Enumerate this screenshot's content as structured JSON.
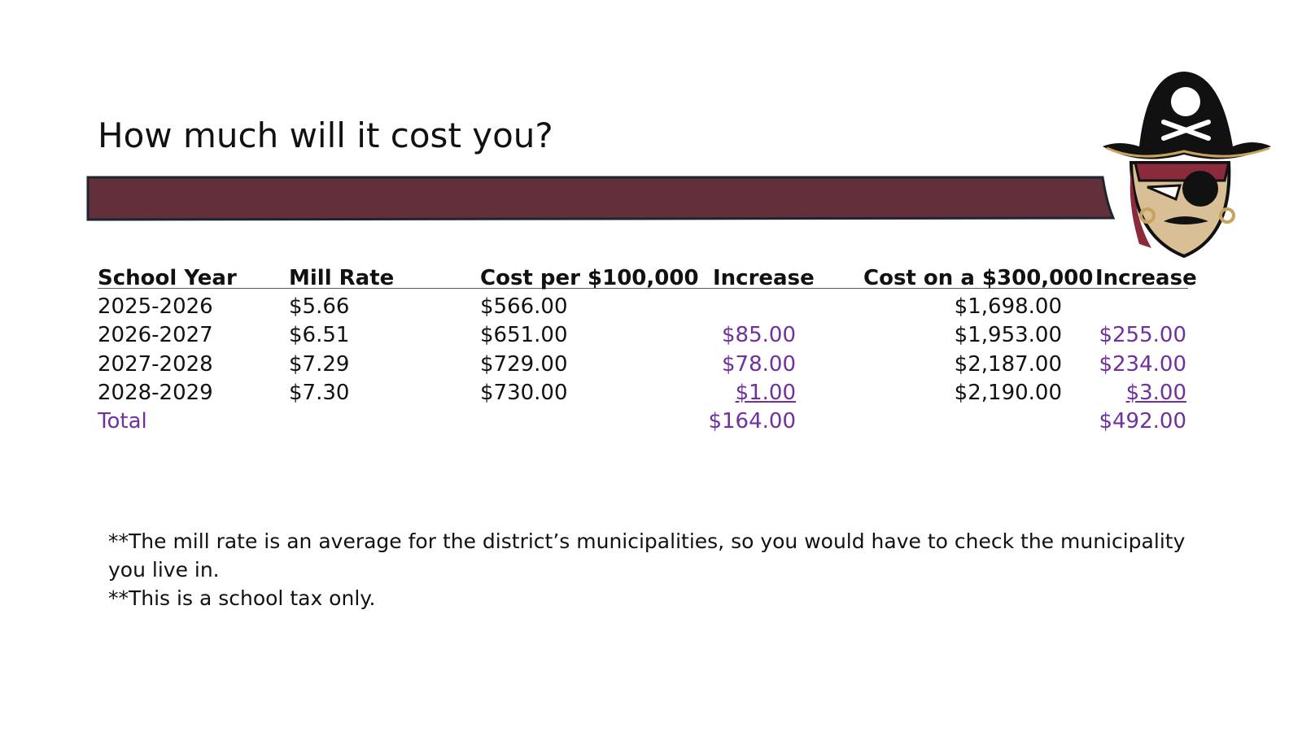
{
  "header": {
    "title": "How much will it cost you?"
  },
  "table": {
    "columns": [
      "School Year",
      "Mill Rate",
      "Cost per $100,000",
      "Increase",
      "Cost on a $300,000",
      "Increase"
    ],
    "rows": [
      [
        "2025-2026",
        "$5.66",
        "$566.00",
        null,
        "$1,698.00",
        null
      ],
      [
        "2026-2027",
        "$6.51",
        "$651.00",
        "$85.00",
        "$1,953.00",
        "$255.00"
      ],
      [
        "2027-2028",
        "$7.29",
        "$729.00",
        "$78.00",
        "$2,187.00",
        "$234.00"
      ],
      [
        "2028-2029",
        "$7.30",
        "$730.00",
        "$1.00",
        "$2,190.00",
        "$3.00"
      ],
      [
        "Total",
        null,
        null,
        "$164.00",
        null,
        "$492.00"
      ]
    ]
  },
  "notes": [
    "**The mill rate is an average for the district’s municipalities, so you would have to check the municipality you live in.",
    "**This is a school tax only."
  ]
}
